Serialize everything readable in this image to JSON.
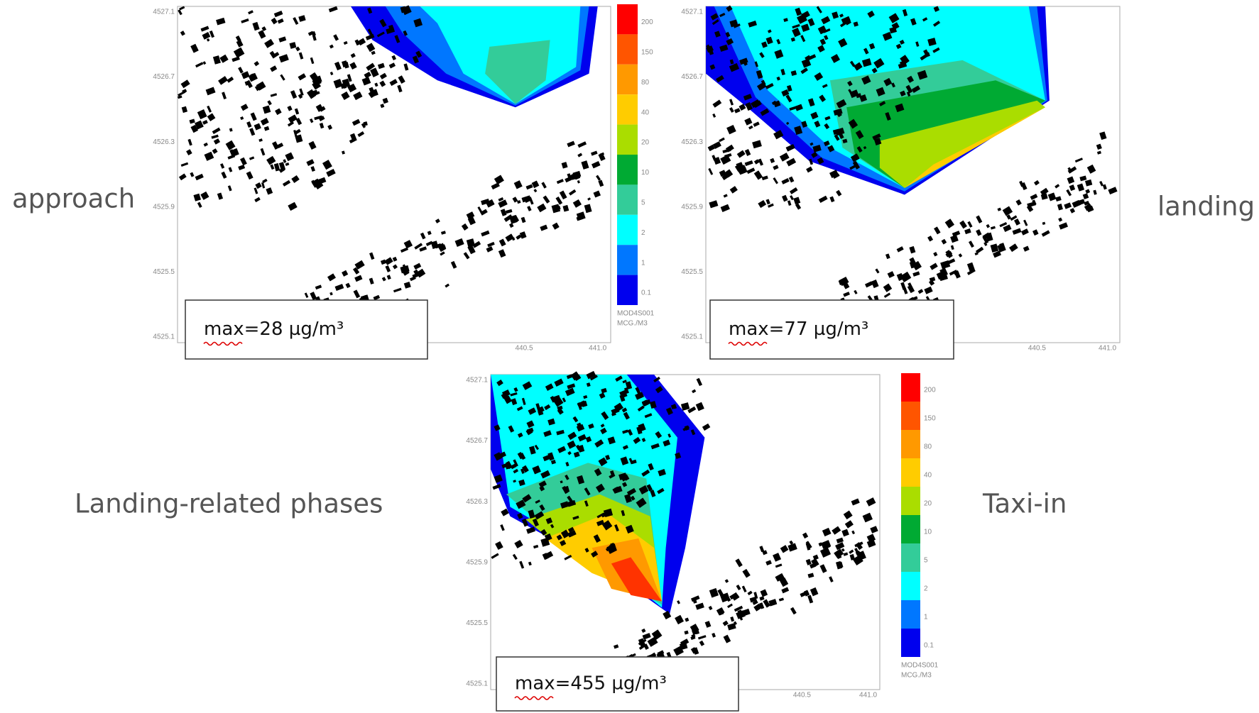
{
  "labels": {
    "approach": "approach",
    "landing": "landing",
    "related": "Landing-related phases",
    "taxi": "Taxi-in"
  },
  "panels": [
    {
      "max": "max=28 µg/m³"
    },
    {
      "max": "max=77 µg/m³"
    },
    {
      "max": "max=455 µg/m³"
    }
  ],
  "axes": {
    "yticks": [
      "4527.1",
      "4526.7",
      "4526.3",
      "4525.9",
      "4525.5",
      "4525.1"
    ],
    "xticks": [
      "440.5",
      "441.0"
    ]
  },
  "colorbar": {
    "labels": [
      "200",
      "150",
      "80",
      "40",
      "20",
      "10",
      "5",
      "2",
      "1",
      "0.1"
    ],
    "units": [
      "MOD4S001",
      "MCG./M3"
    ]
  }
}
